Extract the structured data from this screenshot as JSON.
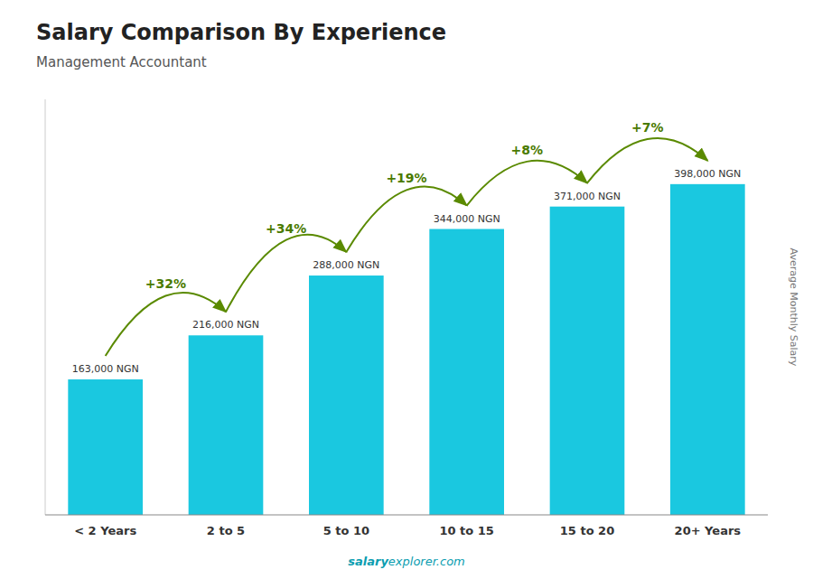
{
  "chart_data": {
    "type": "bar",
    "title": "Salary Comparison By Experience",
    "subtitle": "Management Accountant",
    "categories": [
      "< 2 Years",
      "2 to 5",
      "5 to 10",
      "10 to 15",
      "15 to 20",
      "20+ Years"
    ],
    "values": [
      163000,
      216000,
      288000,
      344000,
      371000,
      398000
    ],
    "value_labels": [
      "163,000 NGN",
      "216,000 NGN",
      "288,000 NGN",
      "344,000 NGN",
      "371,000 NGN",
      "398,000 NGN"
    ],
    "data_labels": true,
    "annotations": [
      "+32%",
      "+34%",
      "+19%",
      "+8%",
      "+7%"
    ],
    "y_label": "Average Monthly Salary",
    "footer": [
      "salary",
      "explorer.com"
    ],
    "color": "#1ac8e0",
    "ylim": [
      0,
      500000
    ],
    "tick_labels": "x",
    "grid": false
  }
}
